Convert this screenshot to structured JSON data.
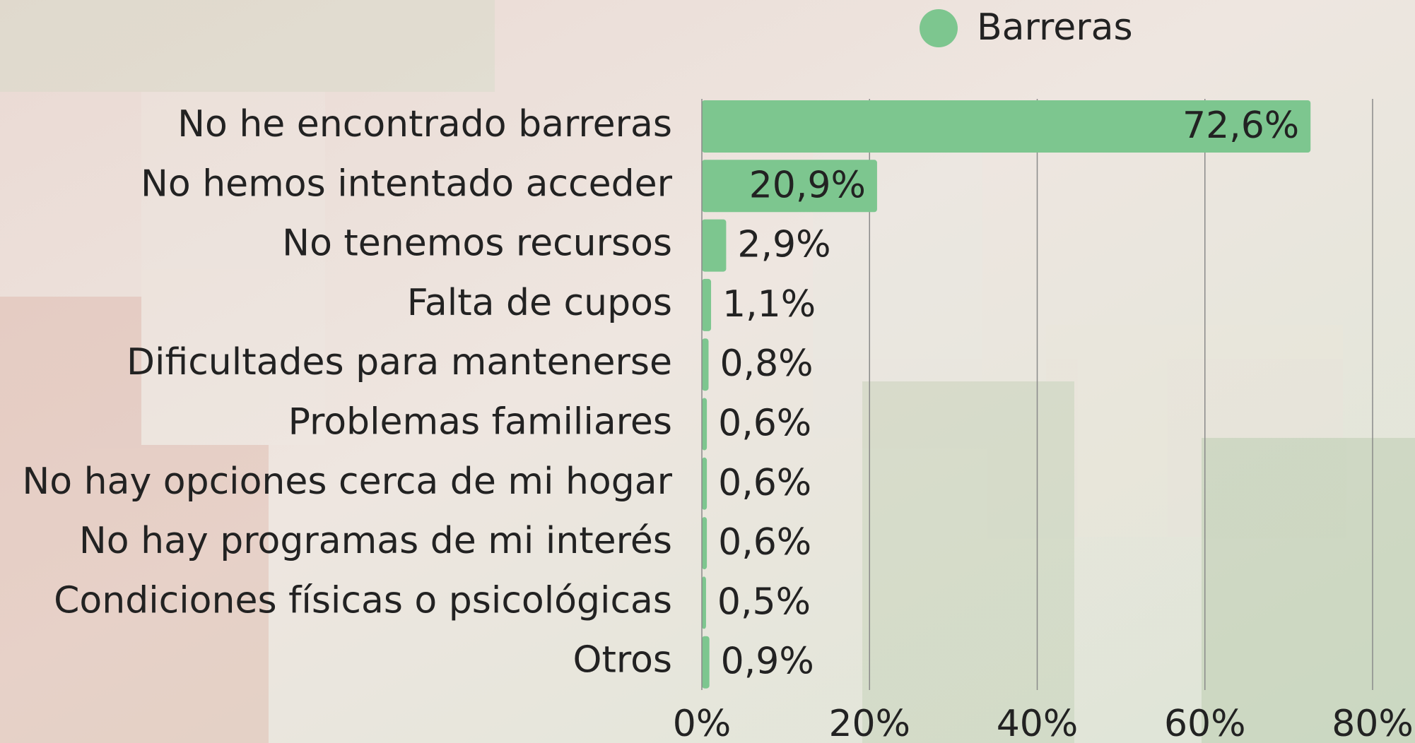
{
  "chart_data": {
    "type": "bar",
    "orientation": "horizontal",
    "categories": [
      "No he encontrado barreras",
      "No hemos intentado acceder",
      "No tenemos recursos",
      "Falta de cupos",
      "Dificultades para mantenerse",
      "Problemas familiares",
      "No hay opciones cerca de mi hogar",
      "No hay programas de mi interés",
      "Condiciones físicas o psicológicas",
      "Otros"
    ],
    "series": [
      {
        "name": "Barreras",
        "color": "#7dc68f",
        "values": [
          72.6,
          20.9,
          2.9,
          1.1,
          0.8,
          0.6,
          0.6,
          0.6,
          0.5,
          0.9
        ],
        "value_labels": [
          "72,6%",
          "20,9%",
          "2,9%",
          "1,1%",
          "0,8%",
          "0,6%",
          "0,6%",
          "0,6%",
          "0,5%",
          "0,9%"
        ]
      }
    ],
    "xlim": [
      0,
      80
    ],
    "xticks": [
      {
        "value": 0,
        "label": "0%"
      },
      {
        "value": 20,
        "label": "20%"
      },
      {
        "value": 40,
        "label": "40%"
      },
      {
        "value": 60,
        "label": "60%"
      },
      {
        "value": 80,
        "label": "80%"
      }
    ],
    "grid": true,
    "legend": "top"
  }
}
